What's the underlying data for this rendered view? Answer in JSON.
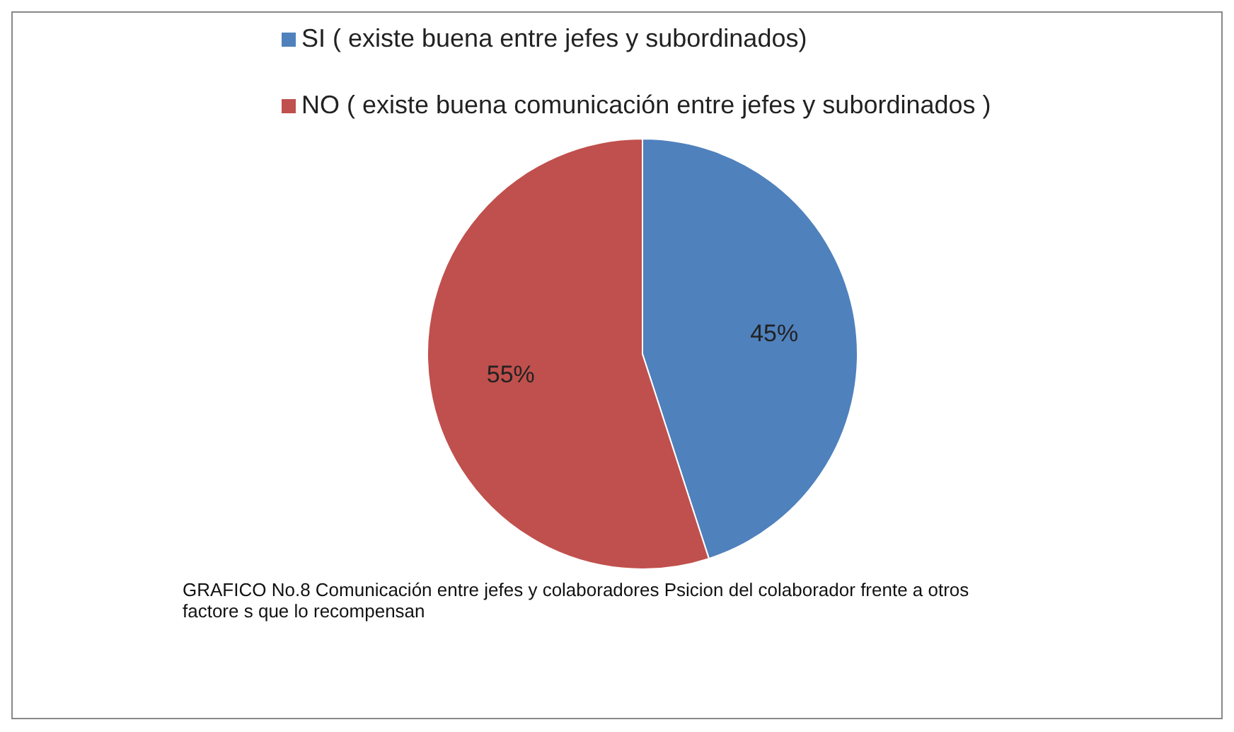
{
  "chart_data": {
    "type": "pie",
    "categories": [
      "SI ( existe buena entre jefes y subordinados)",
      "NO ( existe buena comunicación entre jefes y subordinados )"
    ],
    "values": [
      45,
      55
    ],
    "colors": [
      "#4f81bd",
      "#c0504d"
    ],
    "value_labels": [
      "45%",
      "55%"
    ],
    "legend": "top",
    "annotations": [
      "GRAFICO No.8  Comunicación entre jefes y colaboradores Psicion del colaborador frente a otros factore s que lo recompensan"
    ]
  }
}
